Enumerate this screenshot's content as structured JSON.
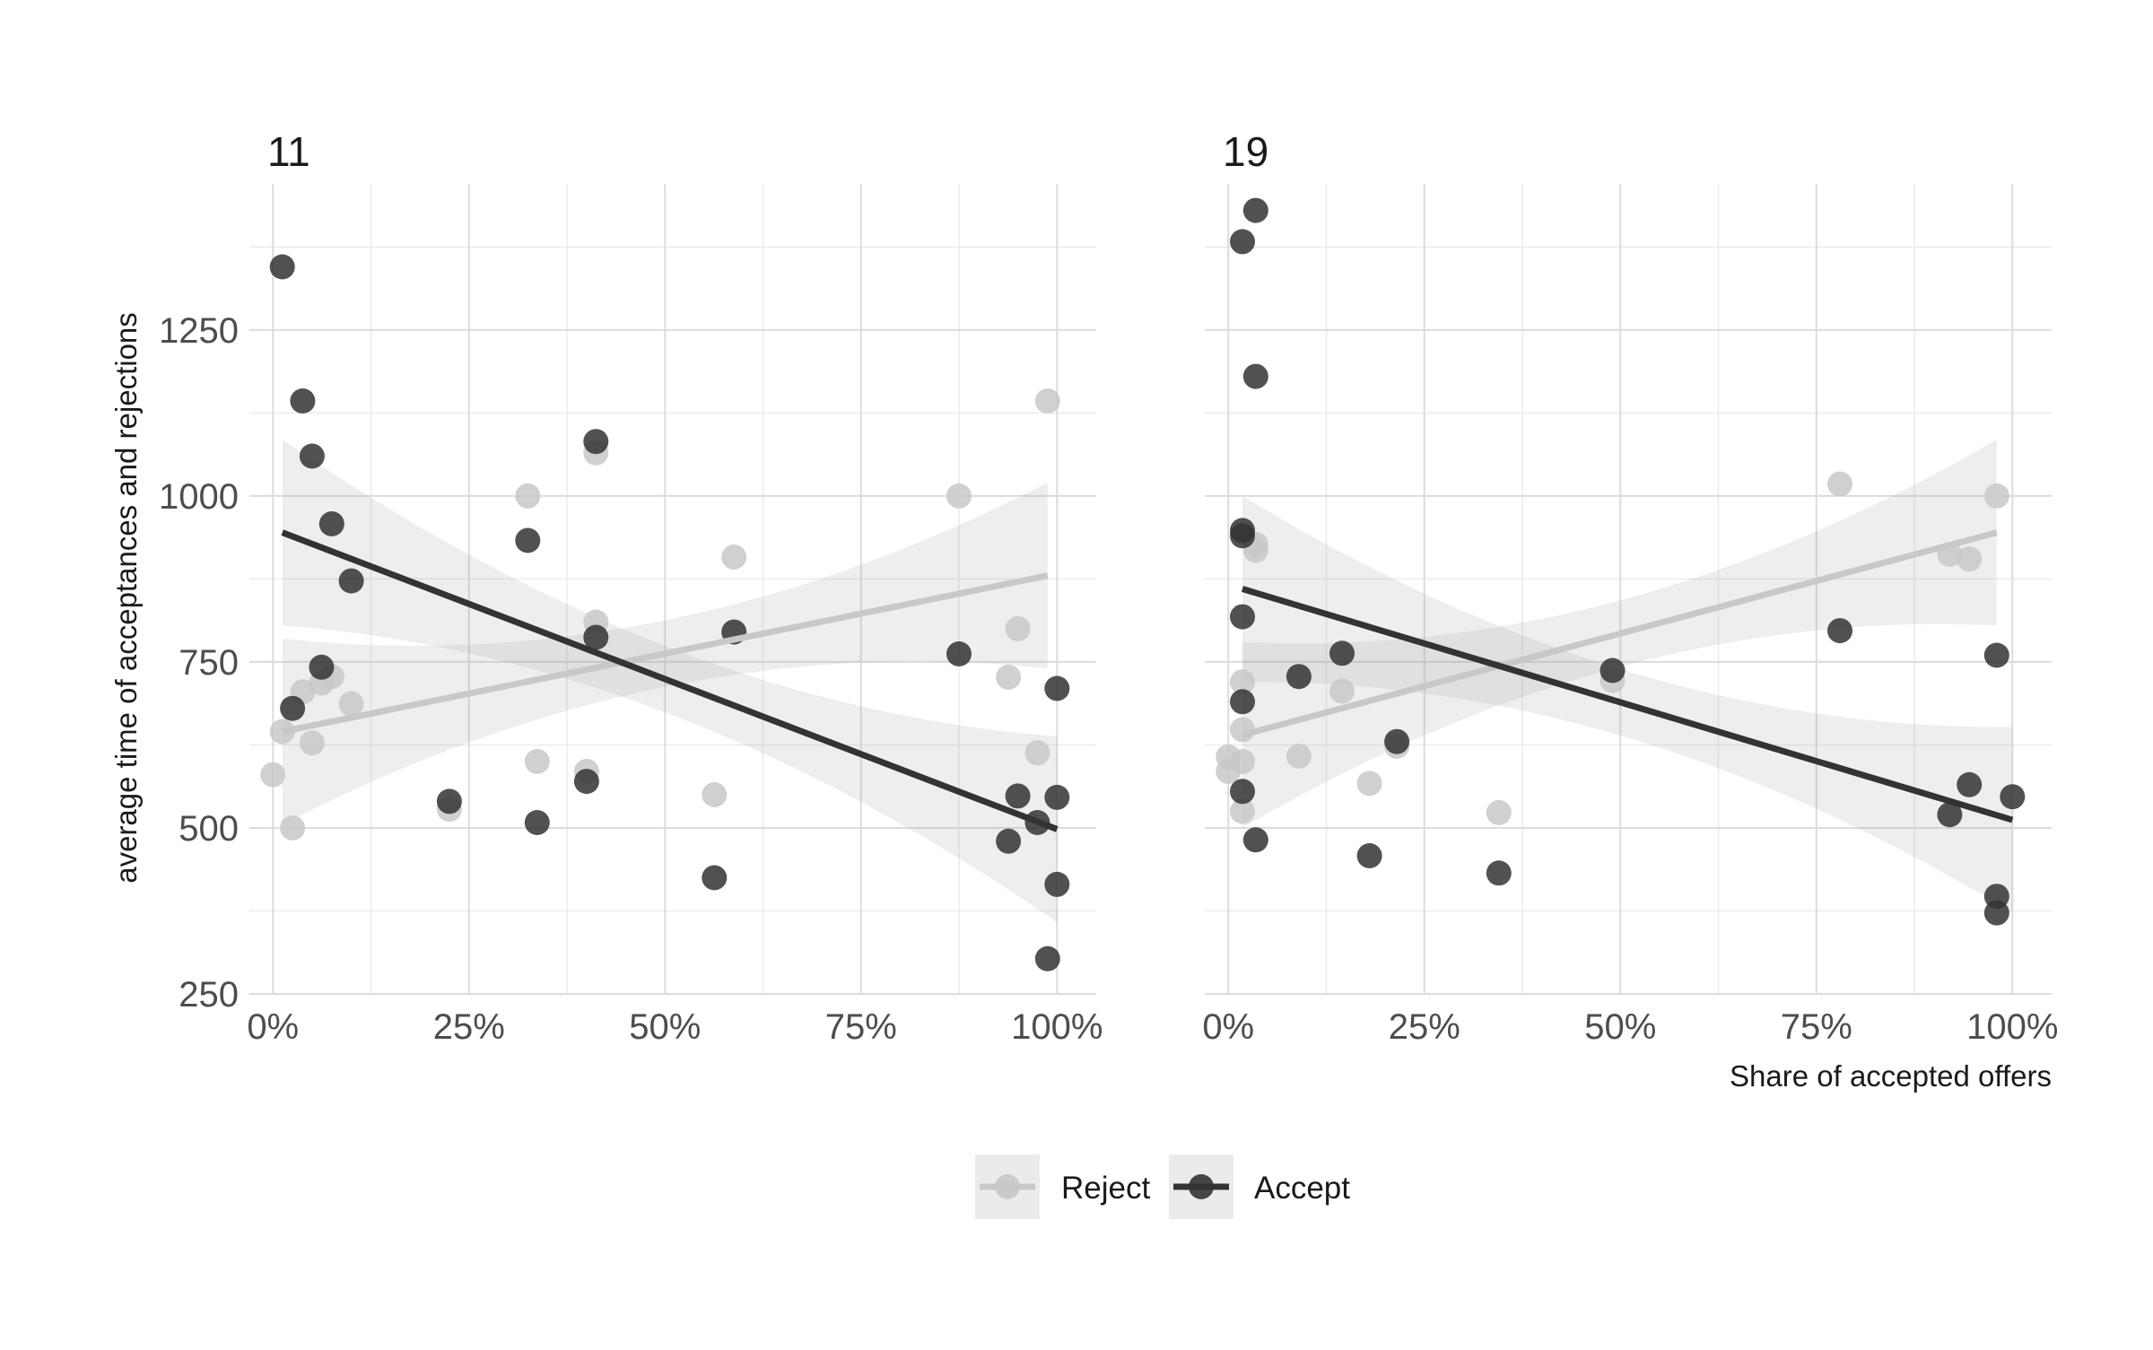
{
  "chart_data": {
    "type": "scatter",
    "xlabel": "Share of accepted offers",
    "ylabel": "average time of acceptances and rejections",
    "x_ticks": [
      "0%",
      "25%",
      "50%",
      "75%",
      "100%"
    ],
    "y_ticks": [
      "250",
      "500",
      "750",
      "1000",
      "1250"
    ],
    "xlim": [
      -0.03,
      1.05
    ],
    "ylim": [
      250,
      1470
    ],
    "grid": true,
    "legend_position": "bottom",
    "legend": [
      {
        "name": "Reject",
        "color": "#c8c8c8"
      },
      {
        "name": "Accept",
        "color": "#333333"
      }
    ],
    "panels": [
      {
        "title": "11",
        "series": [
          {
            "name": "Reject",
            "color": "#c8c8c8",
            "points": [
              [
                0.0,
                580
              ],
              [
                0.012,
                645
              ],
              [
                0.025,
                500
              ],
              [
                0.038,
                705
              ],
              [
                0.05,
                628
              ],
              [
                0.062,
                718
              ],
              [
                0.075,
                728
              ],
              [
                0.1,
                687
              ],
              [
                0.225,
                528
              ],
              [
                0.325,
                1000
              ],
              [
                0.337,
                600
              ],
              [
                0.4,
                585
              ],
              [
                0.412,
                1065
              ],
              [
                0.412,
                810
              ],
              [
                0.563,
                550
              ],
              [
                0.588,
                908
              ],
              [
                0.875,
                1000
              ],
              [
                0.938,
                727
              ],
              [
                0.95,
                800
              ],
              [
                0.975,
                613
              ],
              [
                0.988,
                1143
              ]
            ],
            "fit": {
              "x": [
                0.012,
                0.988
              ],
              "y": [
                645,
                880
              ]
            }
          },
          {
            "name": "Accept",
            "color": "#333333",
            "points": [
              [
                0.012,
                1345
              ],
              [
                0.025,
                680
              ],
              [
                0.038,
                1143
              ],
              [
                0.05,
                1060
              ],
              [
                0.062,
                742
              ],
              [
                0.075,
                958
              ],
              [
                0.1,
                872
              ],
              [
                0.225,
                540
              ],
              [
                0.325,
                933
              ],
              [
                0.337,
                508
              ],
              [
                0.4,
                570
              ],
              [
                0.412,
                1082
              ],
              [
                0.412,
                787
              ],
              [
                0.563,
                425
              ],
              [
                0.588,
                795
              ],
              [
                0.875,
                762
              ],
              [
                0.938,
                480
              ],
              [
                0.95,
                548
              ],
              [
                0.975,
                508
              ],
              [
                0.988,
                303
              ],
              [
                1.0,
                710
              ],
              [
                1.0,
                546
              ],
              [
                1.0,
                415
              ]
            ],
            "fit": {
              "x": [
                0.012,
                1.0
              ],
              "y": [
                945,
                498
              ]
            }
          }
        ]
      },
      {
        "title": "19",
        "series": [
          {
            "name": "Reject",
            "color": "#c8c8c8",
            "points": [
              [
                0.0,
                607
              ],
              [
                0.0,
                585
              ],
              [
                0.018,
                720
              ],
              [
                0.018,
                600
              ],
              [
                0.018,
                525
              ],
              [
                0.018,
                648
              ],
              [
                0.035,
                927
              ],
              [
                0.035,
                918
              ],
              [
                0.09,
                608
              ],
              [
                0.145,
                706
              ],
              [
                0.18,
                567
              ],
              [
                0.215,
                623
              ],
              [
                0.345,
                523
              ],
              [
                0.49,
                722
              ],
              [
                0.78,
                1018
              ],
              [
                0.92,
                912
              ],
              [
                0.945,
                905
              ],
              [
                0.98,
                1000
              ]
            ],
            "fit": {
              "x": [
                0.018,
                0.98
              ],
              "y": [
                640,
                945
              ]
            }
          },
          {
            "name": "Accept",
            "color": "#333333",
            "points": [
              [
                0.018,
                1383
              ],
              [
                0.035,
                1430
              ],
              [
                0.035,
                1180
              ],
              [
                0.018,
                948
              ],
              [
                0.018,
                940
              ],
              [
                0.018,
                818
              ],
              [
                0.018,
                690
              ],
              [
                0.018,
                555
              ],
              [
                0.035,
                482
              ],
              [
                0.09,
                728
              ],
              [
                0.145,
                763
              ],
              [
                0.18,
                458
              ],
              [
                0.215,
                630
              ],
              [
                0.345,
                432
              ],
              [
                0.49,
                737
              ],
              [
                0.78,
                797
              ],
              [
                0.92,
                520
              ],
              [
                0.945,
                565
              ],
              [
                0.98,
                760
              ],
              [
                0.98,
                397
              ],
              [
                0.98,
                372
              ],
              [
                1.0,
                547
              ]
            ],
            "fit": {
              "x": [
                0.018,
                1.0
              ],
              "y": [
                860,
                512
              ]
            }
          }
        ]
      }
    ]
  }
}
